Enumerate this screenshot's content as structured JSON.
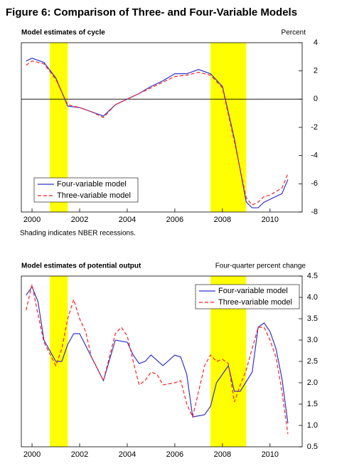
{
  "title": "Figure 6:  Comparison of Three- and Four-Variable Models",
  "chart_data": [
    {
      "type": "line",
      "title": "Model estimates of cycle",
      "y_label": "Percent",
      "note": "Shading indicates NBER recessions.",
      "xlim": [
        1999.55,
        2011.35
      ],
      "xticks": [
        2000,
        2002,
        2004,
        2006,
        2008,
        2010
      ],
      "ylim": [
        -8,
        4
      ],
      "yticks": [
        4,
        2,
        0,
        -2,
        -4,
        -6,
        -8
      ],
      "zero_line": true,
      "legend": "lower left",
      "shading": [
        [
          2000.75,
          2001.5
        ],
        [
          2007.5,
          2009.0
        ]
      ],
      "shading_color": "#ffff00",
      "series": [
        {
          "name": "Four-variable model",
          "color": "#3333cc",
          "dash": false,
          "x": [
            1999.75,
            2000.0,
            2000.5,
            2001.0,
            2001.5,
            2002.0,
            2002.5,
            2003.0,
            2003.5,
            2004.0,
            2004.5,
            2005.0,
            2005.5,
            2006.0,
            2006.5,
            2007.0,
            2007.5,
            2008.0,
            2008.5,
            2009.0,
            2009.25,
            2009.5,
            2009.75,
            2010.0,
            2010.5,
            2010.75
          ],
          "values": [
            2.7,
            2.9,
            2.6,
            1.5,
            -0.5,
            -0.6,
            -0.9,
            -1.2,
            -0.4,
            0.0,
            0.4,
            0.9,
            1.3,
            1.8,
            1.8,
            2.1,
            1.8,
            0.9,
            -2.8,
            -7.3,
            -7.7,
            -7.7,
            -7.3,
            -7.1,
            -6.7,
            -5.7
          ]
        },
        {
          "name": "Three-variable model",
          "color": "#ff2222",
          "dash": true,
          "x": [
            1999.75,
            2000.0,
            2000.5,
            2001.0,
            2001.5,
            2002.0,
            2002.5,
            2003.0,
            2003.5,
            2004.0,
            2004.5,
            2005.0,
            2005.5,
            2006.0,
            2006.5,
            2007.0,
            2007.5,
            2008.0,
            2008.5,
            2009.0,
            2009.25,
            2009.5,
            2009.75,
            2010.0,
            2010.5,
            2010.75
          ],
          "values": [
            2.4,
            2.7,
            2.5,
            1.4,
            -0.4,
            -0.6,
            -0.9,
            -1.3,
            -0.4,
            0.0,
            0.4,
            0.8,
            1.2,
            1.6,
            1.7,
            1.9,
            1.7,
            0.8,
            -3.0,
            -7.0,
            -7.5,
            -7.3,
            -6.9,
            -6.8,
            -6.3,
            -5.3
          ]
        }
      ]
    },
    {
      "type": "line",
      "title": "Model estimates of potential output",
      "y_label": "Four-quarter percent change",
      "xlim": [
        1999.55,
        2011.35
      ],
      "xticks": [
        2000,
        2002,
        2004,
        2006,
        2008,
        2010
      ],
      "ylim": [
        0.5,
        4.5
      ],
      "yticks": [
        4.5,
        {
          "value": 4,
          "label": "4.0"
        },
        3.5,
        {
          "value": 3,
          "label": "3.0"
        },
        2.5,
        {
          "value": 2,
          "label": "2.0"
        },
        1.5,
        {
          "value": 1,
          "label": "1.0"
        },
        0.5
      ],
      "zero_line": false,
      "legend": "upper right",
      "shading": [
        [
          2000.75,
          2001.5
        ],
        [
          2007.5,
          2009.0
        ]
      ],
      "shading_color": "#ffff00",
      "series": [
        {
          "name": "Four-variable model",
          "color": "#3333cc",
          "dash": false,
          "x": [
            1999.75,
            2000.0,
            2000.25,
            2000.5,
            2001.0,
            2001.25,
            2001.5,
            2001.75,
            2002.0,
            2002.5,
            2003.0,
            2003.5,
            2004.0,
            2004.25,
            2004.5,
            2004.75,
            2005.0,
            2005.5,
            2006.0,
            2006.25,
            2006.5,
            2006.75,
            2007.25,
            2007.5,
            2007.75,
            2008.25,
            2008.5,
            2008.75,
            2009.25,
            2009.5,
            2009.75,
            2010.0,
            2010.25,
            2010.5,
            2010.75
          ],
          "values": [
            4.05,
            4.25,
            3.9,
            3.0,
            2.5,
            2.5,
            2.9,
            3.15,
            3.15,
            2.6,
            2.05,
            3.0,
            2.95,
            2.65,
            2.45,
            2.5,
            2.65,
            2.4,
            2.65,
            2.6,
            2.2,
            1.2,
            1.25,
            1.45,
            2.0,
            2.4,
            1.8,
            1.8,
            2.25,
            3.3,
            3.4,
            3.2,
            2.8,
            2.1,
            1.05
          ]
        },
        {
          "name": "Three-variable model",
          "color": "#ff2222",
          "dash": true,
          "x": [
            1999.75,
            2000.0,
            2000.25,
            2000.5,
            2001.0,
            2001.25,
            2001.5,
            2001.75,
            2002.0,
            2002.25,
            2002.5,
            2003.0,
            2003.5,
            2003.75,
            2004.0,
            2004.25,
            2004.5,
            2004.75,
            2005.0,
            2005.25,
            2005.5,
            2006.0,
            2006.25,
            2006.5,
            2006.75,
            2007.25,
            2007.5,
            2007.75,
            2008.0,
            2008.25,
            2008.5,
            2008.75,
            2009.0,
            2009.5,
            2009.75,
            2010.0,
            2010.25,
            2010.5,
            2010.75
          ],
          "values": [
            3.7,
            4.3,
            3.6,
            2.95,
            2.4,
            2.8,
            3.5,
            3.95,
            3.5,
            3.2,
            2.6,
            2.05,
            3.15,
            3.3,
            3.1,
            2.5,
            1.95,
            2.05,
            2.25,
            2.2,
            1.95,
            2.0,
            2.05,
            1.5,
            1.2,
            2.4,
            2.65,
            2.5,
            2.55,
            2.45,
            1.55,
            1.95,
            2.3,
            3.3,
            3.3,
            3.0,
            2.6,
            1.8,
            0.8
          ]
        }
      ]
    }
  ]
}
